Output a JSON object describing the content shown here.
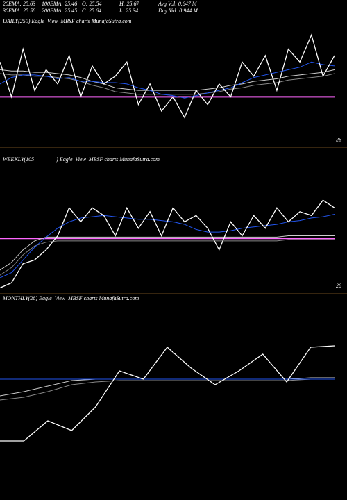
{
  "header": {
    "stats": [
      "20EMA: 25.63",
      "100EMA: 25.46",
      "O: 25.54",
      "H: 25.67",
      "Avg Vol: 0.647 M",
      "30EMA: 25.58",
      "200EMA: 25.45",
      "C: 25.64",
      "L: 25.34",
      "Day Vol: 0.944 M"
    ]
  },
  "chart_data": [
    {
      "type": "line",
      "title": "DAILY(250) Eagle  View  MBSF charts MunafaSutra.com",
      "ylim": [
        26.05,
        25.0
      ],
      "yticks": [
        26
      ],
      "reference_line": {
        "value": 25.67,
        "color": "#ff66ff"
      },
      "series": [
        {
          "color": "#888888",
          "values": [
            25.49,
            25.5,
            25.5,
            25.51,
            25.51,
            25.52,
            25.53,
            25.55,
            25.58,
            25.6,
            25.63,
            25.64,
            25.65,
            25.65,
            25.65,
            25.65,
            25.65,
            25.65,
            25.64,
            25.63,
            25.61,
            25.6,
            25.58,
            25.57,
            25.56,
            25.54,
            25.53,
            25.52,
            25.51,
            25.49
          ]
        },
        {
          "color": "#cccccc",
          "values": [
            25.46,
            25.47,
            25.47,
            25.48,
            25.48,
            25.49,
            25.5,
            25.52,
            25.55,
            25.57,
            25.6,
            25.61,
            25.62,
            25.62,
            25.62,
            25.62,
            25.62,
            25.62,
            25.61,
            25.6,
            25.58,
            25.57,
            25.55,
            25.54,
            25.53,
            25.51,
            25.5,
            25.49,
            25.48,
            25.46
          ]
        },
        {
          "color": "#2255ee",
          "values": [
            25.57,
            25.52,
            25.5,
            25.5,
            25.51,
            25.53,
            25.52,
            25.55,
            25.55,
            25.56,
            25.56,
            25.57,
            25.6,
            25.62,
            25.65,
            25.66,
            25.68,
            25.66,
            25.64,
            25.62,
            25.6,
            25.56,
            25.52,
            25.5,
            25.48,
            25.46,
            25.44,
            25.4,
            25.42,
            25.43
          ]
        },
        {
          "color": "#ffffff",
          "values": [
            25.4,
            25.67,
            25.3,
            25.62,
            25.46,
            25.57,
            25.35,
            25.67,
            25.43,
            25.57,
            25.51,
            25.4,
            25.73,
            25.57,
            25.78,
            25.67,
            25.83,
            25.62,
            25.73,
            25.57,
            25.67,
            25.4,
            25.51,
            25.35,
            25.62,
            25.3,
            25.4,
            25.19,
            25.51,
            25.35
          ]
        }
      ]
    },
    {
      "type": "line",
      "title": "WEEKLY(105                ) Eagle  View  MBSF charts MunafaSutra.com",
      "ylim": [
        26.05,
        25.0
      ],
      "yticks": [
        26
      ],
      "reference_line": {
        "value": 25.63,
        "color": "#ff66ff"
      },
      "series": [
        {
          "color": "#888888",
          "values": [
            25.92,
            25.86,
            25.76,
            25.69,
            25.66,
            25.65,
            25.65,
            25.65,
            25.65,
            25.65,
            25.65,
            25.65,
            25.65,
            25.65,
            25.65,
            25.65,
            25.65,
            25.65,
            25.65,
            25.65,
            25.65,
            25.65,
            25.65,
            25.65,
            25.65,
            25.64,
            25.64,
            25.64,
            25.64,
            25.64
          ]
        },
        {
          "color": "#cccccc",
          "values": [
            25.88,
            25.82,
            25.72,
            25.65,
            25.62,
            25.62,
            25.62,
            25.62,
            25.62,
            25.62,
            25.62,
            25.62,
            25.62,
            25.62,
            25.62,
            25.62,
            25.62,
            25.62,
            25.62,
            25.62,
            25.62,
            25.62,
            25.62,
            25.62,
            25.62,
            25.61,
            25.61,
            25.61,
            25.61,
            25.61
          ]
        },
        {
          "color": "#2255ee",
          "values": [
            25.94,
            25.9,
            25.8,
            25.7,
            25.62,
            25.55,
            25.5,
            25.47,
            25.46,
            25.45,
            25.46,
            25.47,
            25.48,
            25.48,
            25.49,
            25.5,
            25.52,
            25.56,
            25.58,
            25.58,
            25.57,
            25.55,
            25.54,
            25.53,
            25.52,
            25.5,
            25.49,
            25.47,
            25.46,
            25.44
          ]
        },
        {
          "color": "#ffffff",
          "values": [
            26.02,
            25.98,
            25.83,
            25.8,
            25.72,
            25.61,
            25.39,
            25.5,
            25.39,
            25.45,
            25.61,
            25.39,
            25.55,
            25.42,
            25.61,
            25.39,
            25.5,
            25.45,
            25.55,
            25.72,
            25.5,
            25.61,
            25.45,
            25.55,
            25.39,
            25.5,
            25.42,
            25.45,
            25.33,
            25.39
          ]
        }
      ]
    },
    {
      "type": "line",
      "title": "MONTHLY(28) Eagle  View  MBSF charts MunafaSutra.com",
      "ylim": [
        26.2,
        24.9
      ],
      "yticks": [],
      "series": [
        {
          "color": "#888888",
          "values": [
            25.58,
            25.56,
            25.52,
            25.47,
            25.45,
            25.44,
            25.44,
            25.44,
            25.44,
            25.44,
            25.44,
            25.44,
            25.44,
            25.43,
            25.43
          ]
        },
        {
          "color": "#cccccc",
          "values": [
            25.55,
            25.52,
            25.48,
            25.44,
            25.43,
            25.43,
            25.43,
            25.43,
            25.43,
            25.43,
            25.43,
            25.43,
            25.43,
            25.42,
            25.42
          ]
        },
        {
          "color": "#2255ee",
          "values": [
            25.43,
            25.43,
            25.43,
            25.43,
            25.43,
            25.43,
            25.43,
            25.43,
            25.43,
            25.43,
            25.43,
            25.43,
            25.43,
            25.43,
            25.43
          ]
        },
        {
          "color": "#ffffff",
          "values": [
            25.875,
            25.875,
            25.73,
            25.8,
            25.63,
            25.37,
            25.43,
            25.2,
            25.35,
            25.47,
            25.37,
            25.25,
            25.45,
            25.2,
            25.19
          ]
        }
      ]
    }
  ]
}
